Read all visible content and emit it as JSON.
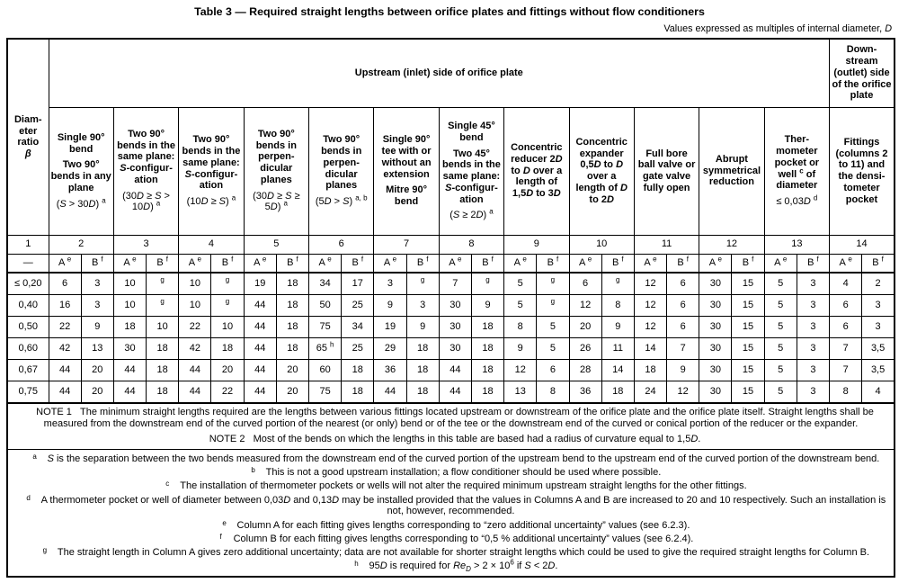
{
  "title": "Table 3 — Required straight lengths between orifice plates and fittings without flow conditioners",
  "subtitle": "Values expressed as multiples of internal diameter, *D*",
  "table": {
    "diameter_header": "Diam-|eter|ratio|*β*",
    "upstream_header": "Upstream (inlet) side of orifice plate",
    "downstream_header": "Down-|stream (outlet) side of the orifice plate",
    "fittings": [
      "Single 90° bend||Two 90° bends in any plane||@{(*S* > 30*D*) ^{a}}",
      "Two 90° bends in the same plane: *S*-configur-|ation||@{(30*D* ≥ *S* > 10*D*) ^{a}}",
      "Two 90° bends in the same plane: *S*-configur-|ation||@{(10*D* ≥ *S*) ^{a}}",
      "Two 90° bends in perpen-|dicular planes||@{(30*D* ≥ *S* ≥ 5*D*) ^{a}}",
      "Two 90° bends in perpen-|dicular planes||@{(5*D* > *S*) ^{a, b}}",
      "Single 90° tee with or without an extension||Mitre 90° bend",
      "Single 45° bend||Two 45° bends in the same plane: *S*-configur-|ation||@{(*S* ≥ 2*D*) ^{a}}",
      "Concentric reducer 2*D* to *D* over a length of 1,5*D* to 3*D*",
      "Concentric expander 0,5*D* to *D* over a length of *D* to 2*D*",
      "Full bore ball valve or gate valve fully open",
      "Abrupt symmetrical reduction",
      "Ther-|mometer pocket or well ^{c} of diameter||@{≤ 0,03*D* ^{d}}"
    ],
    "downstream_fitting": "Fittings (columns 2 to 11) and the densi-|tometer pocket",
    "col_numbers": [
      "1",
      "2",
      "3",
      "4",
      "5",
      "6",
      "7",
      "8",
      "9",
      "10",
      "11",
      "12",
      "13",
      "14"
    ],
    "dash": "—",
    "a_label": "A ^{e}",
    "b_label": "B ^{f}",
    "rows": [
      {
        "beta": "≤ 0,20",
        "values": [
          "6",
          "3",
          "10",
          "^{g}",
          "10",
          "^{g}",
          "19",
          "18",
          "34",
          "17",
          "3",
          "^{g}",
          "7",
          "^{g}",
          "5",
          "^{g}",
          "6",
          "^{g}",
          "12",
          "6",
          "30",
          "15",
          "5",
          "3",
          "4",
          "2"
        ]
      },
      {
        "beta": "0,40",
        "values": [
          "16",
          "3",
          "10",
          "^{g}",
          "10",
          "^{g}",
          "44",
          "18",
          "50",
          "25",
          "9",
          "3",
          "30",
          "9",
          "5",
          "^{g}",
          "12",
          "8",
          "12",
          "6",
          "30",
          "15",
          "5",
          "3",
          "6",
          "3"
        ]
      },
      {
        "beta": "0,50",
        "values": [
          "22",
          "9",
          "18",
          "10",
          "22",
          "10",
          "44",
          "18",
          "75",
          "34",
          "19",
          "9",
          "30",
          "18",
          "8",
          "5",
          "20",
          "9",
          "12",
          "6",
          "30",
          "15",
          "5",
          "3",
          "6",
          "3"
        ]
      },
      {
        "beta": "0,60",
        "values": [
          "42",
          "13",
          "30",
          "18",
          "42",
          "18",
          "44",
          "18",
          "65 ^{h}",
          "25",
          "29",
          "18",
          "30",
          "18",
          "9",
          "5",
          "26",
          "11",
          "14",
          "7",
          "30",
          "15",
          "5",
          "3",
          "7",
          "3,5"
        ]
      },
      {
        "beta": "0,67",
        "values": [
          "44",
          "20",
          "44",
          "18",
          "44",
          "20",
          "44",
          "20",
          "60",
          "18",
          "36",
          "18",
          "44",
          "18",
          "12",
          "6",
          "28",
          "14",
          "18",
          "9",
          "30",
          "15",
          "5",
          "3",
          "7",
          "3,5"
        ]
      },
      {
        "beta": "0,75",
        "values": [
          "44",
          "20",
          "44",
          "18",
          "44",
          "22",
          "44",
          "20",
          "75",
          "18",
          "44",
          "18",
          "44",
          "18",
          "13",
          "8",
          "36",
          "18",
          "24",
          "12",
          "30",
          "15",
          "5",
          "3",
          "8",
          "4"
        ]
      }
    ]
  },
  "notes": {
    "note1_label": "NOTE 1",
    "note1": "The minimum straight lengths required are the lengths between various fittings located upstream or downstream of the orifice plate and the orifice plate itself. Straight lengths shall be measured from the downstream end of the curved portion of the nearest (or only) bend or of the tee or the downstream end of the curved or conical portion of the reducer or the expander.",
    "note2_label": "NOTE 2",
    "note2": "Most of the bends on which the lengths in this table are based had a radius of curvature equal to 1,5*D*."
  },
  "footnotes": [
    {
      "key": "a",
      "text": "*S* is the separation between the two bends measured from the downstream end of the curved portion of the upstream bend to the upstream end of the curved portion of the downstream bend."
    },
    {
      "key": "b",
      "text": "This is not a good upstream installation; a flow conditioner should be used where possible."
    },
    {
      "key": "c",
      "text": "The installation of thermometer pockets or wells will not alter the required minimum upstream straight lengths for the other fittings."
    },
    {
      "key": "d",
      "text": "A thermometer pocket or well of diameter between 0,03*D* and 0,13*D* may be installed provided that the values in Columns A and B are increased to 20 and 10 respectively. Such an installation is not, however, recommended."
    },
    {
      "key": "e",
      "text": "Column A for each fitting gives lengths corresponding to “zero additional uncertainty” values (see 6.2.3)."
    },
    {
      "key": "f",
      "text": "Column B for each fitting gives lengths corresponding to “0,5 % additional uncertainty” values (see 6.2.4)."
    },
    {
      "key": "g",
      "text": "The straight length in Column A gives zero additional uncertainty; data are not available for shorter straight lengths which could be used to give the required straight lengths for Column B."
    },
    {
      "key": "h",
      "text": "95*D* is required for *Re*~{*D*} > 2 × 10^{6} if *S* < 2*D*."
    }
  ]
}
